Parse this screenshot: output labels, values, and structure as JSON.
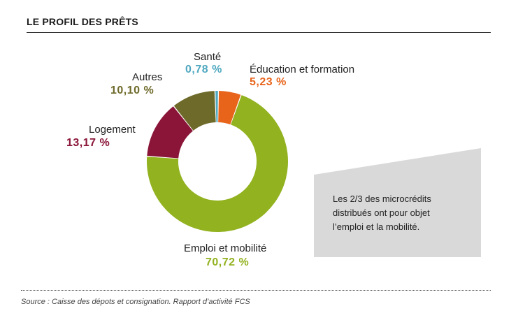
{
  "title": "LE PROFIL DES PRÊTS",
  "source": "Source : Caisse des dépots et consignation. Rapport d’activité FCS",
  "note_lines": [
    "Les 2/3 des microcrédits",
    "distribués ont pour objet",
    "l’emploi et la mobilité."
  ],
  "chart_data": {
    "type": "pie",
    "donut": true,
    "slices": [
      {
        "name": "Santé",
        "label": "0,78 %",
        "value": 0.78,
        "color": "#4fa8c0"
      },
      {
        "name": "Éducation et formation",
        "label": "5,23 %",
        "value": 5.23,
        "color": "#e8641b"
      },
      {
        "name": "Emploi et mobilité",
        "label": "70,72 %",
        "value": 70.72,
        "color": "#92b21f"
      },
      {
        "name": "Logement",
        "label": "13,17 %",
        "value": 13.17,
        "color": "#8a1538"
      },
      {
        "name": "Autres",
        "label": "10,10 %",
        "value": 10.1,
        "color": "#6e6a2a"
      }
    ]
  }
}
